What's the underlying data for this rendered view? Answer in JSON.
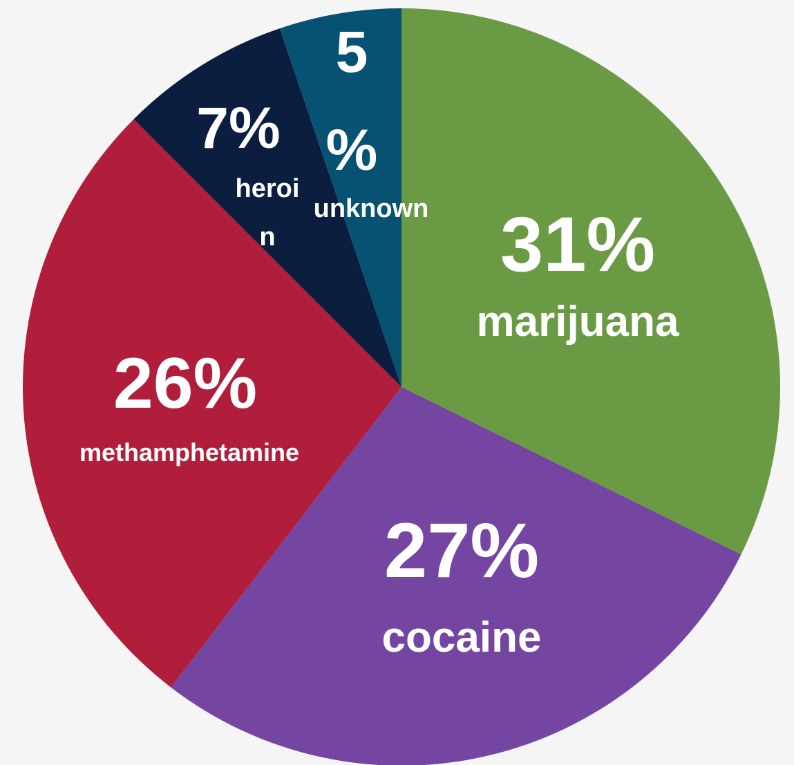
{
  "chart_data": {
    "type": "pie",
    "slices": [
      {
        "category": "marijuana",
        "value": 31,
        "percent_label": "31%",
        "label_lines": [
          "marijuana"
        ],
        "color": "#6a9a44"
      },
      {
        "category": "cocaine",
        "value": 27,
        "percent_label": "27%",
        "label_lines": [
          "cocaine"
        ],
        "color": "#7446a1"
      },
      {
        "category": "methamphetamine",
        "value": 26,
        "percent_label": "26%",
        "label_lines": [
          "methamphetamine"
        ],
        "color": "#b11e3b"
      },
      {
        "category": "heroin",
        "value": 7,
        "percent_label": "7%",
        "label_lines": [
          "heroi",
          "n"
        ],
        "color": "#0b1e3f"
      },
      {
        "category": "unknown",
        "value": 5,
        "percent_label_lines": [
          "5",
          "%"
        ],
        "label_lines": [
          "unknown"
        ],
        "color": "#075273"
      }
    ],
    "start_angle": "12 o'clock",
    "direction": "clockwise",
    "legend": "none",
    "background": "#f5f5f5",
    "label_color": "#ffffff"
  }
}
